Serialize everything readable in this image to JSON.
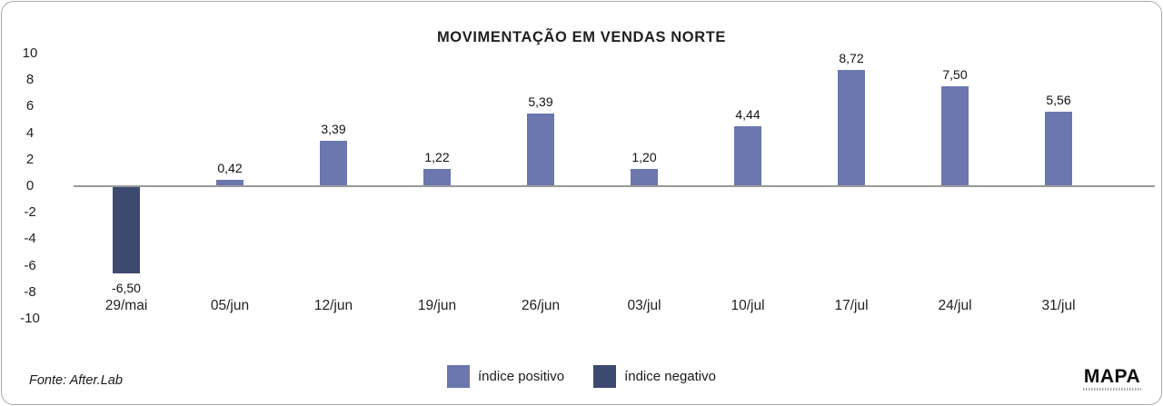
{
  "title": "MOVIMENTAÇÃO EM VENDAS NORTE",
  "footer": {
    "source": "Fonte: After.Lab",
    "brand": "MAPA"
  },
  "legend": [
    {
      "label": "índice positivo",
      "color": "#6b77ad"
    },
    {
      "label": "índice negativo",
      "color": "#3d4a6f"
    }
  ],
  "colors": {
    "positive_bar": "#6b77ad",
    "negative_bar": "#3d4a6f",
    "axis_line": "#999999",
    "card_border": "#a9a9a9",
    "text": "#1a1a1a"
  },
  "chart_data": {
    "type": "bar",
    "title": "MOVIMENTAÇÃO EM VENDAS NORTE",
    "categories": [
      "29/mai",
      "05/jun",
      "12/jun",
      "19/jun",
      "26/jun",
      "03/jul",
      "10/jul",
      "17/jul",
      "24/jul",
      "31/jul"
    ],
    "values": [
      -6.5,
      0.42,
      3.39,
      1.22,
      5.39,
      1.2,
      4.44,
      8.72,
      7.5,
      5.56
    ],
    "value_labels": [
      "-6,50",
      "0,42",
      "3,39",
      "1,22",
      "5,39",
      "1,20",
      "4,44",
      "8,72",
      "7,50",
      "5,56"
    ],
    "xlabel": "",
    "ylabel": "",
    "ylim": [
      -10,
      10
    ],
    "yticks": [
      10,
      8,
      6,
      4,
      2,
      0,
      -2,
      -4,
      -6,
      -8,
      -10
    ],
    "grid": false,
    "legend_position": "bottom",
    "positive_color": "#6b77ad",
    "negative_color": "#3d4a6f"
  }
}
